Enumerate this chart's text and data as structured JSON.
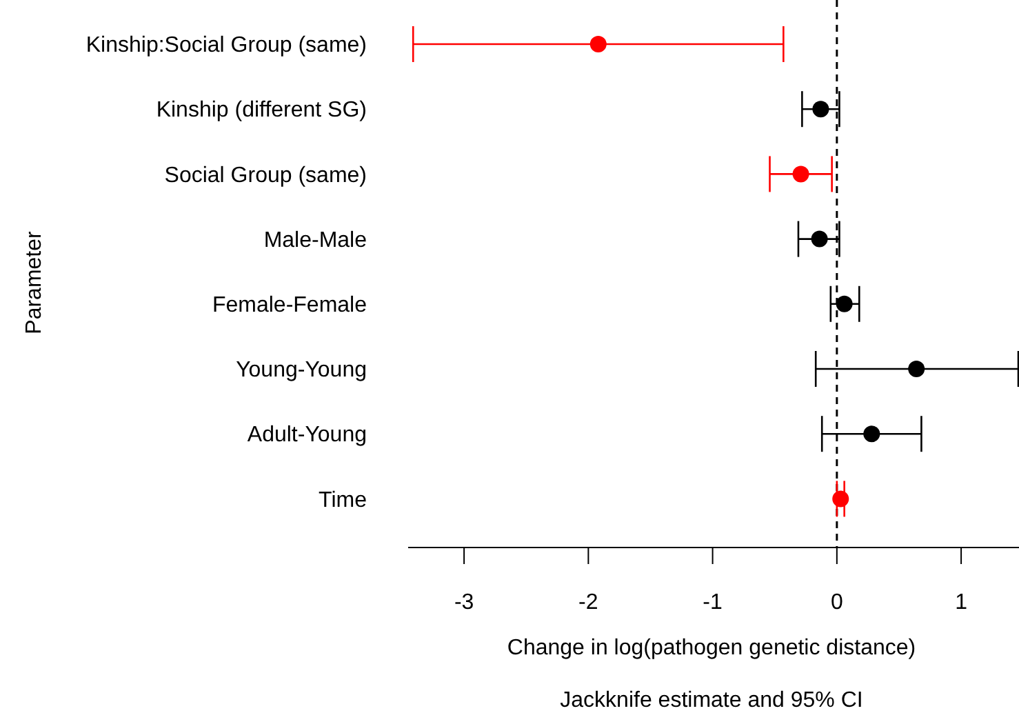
{
  "chart_data": {
    "type": "scatter",
    "orientation": "horizontal",
    "categories": [
      "Kinship:Social Group (same)",
      "Kinship (different SG)",
      "Social Group (same)",
      "Male-Male",
      "Female-Female",
      "Young-Young",
      "Adult-Young",
      "Time"
    ],
    "values": [
      -1.92,
      -0.13,
      -0.29,
      -0.14,
      0.06,
      0.64,
      0.28,
      0.03
    ],
    "errors": [
      [
        -3.41,
        -0.43
      ],
      [
        -0.28,
        0.02
      ],
      [
        -0.54,
        -0.04
      ],
      [
        -0.31,
        0.02
      ],
      [
        -0.05,
        0.18
      ],
      [
        -0.17,
        1.46
      ],
      [
        -0.12,
        0.68
      ],
      [
        0.0,
        0.06
      ]
    ],
    "colors": [
      "#ff0000",
      "#000000",
      "#ff0000",
      "#000000",
      "#000000",
      "#000000",
      "#000000",
      "#ff0000"
    ],
    "xlim": [
      -3.45,
      1.47
    ],
    "xticks": [
      -3,
      -2,
      -1,
      0,
      1
    ],
    "xlabel": "Change in log(pathogen genetic distance)",
    "ylabel": "Parameter",
    "annotations": [
      "Jackknife estimate and 95% CI"
    ],
    "ref_lines": [
      {
        "axis": "x",
        "value": 0,
        "line_style": "dashed",
        "color": "#000000"
      }
    ],
    "marker": "circle"
  }
}
